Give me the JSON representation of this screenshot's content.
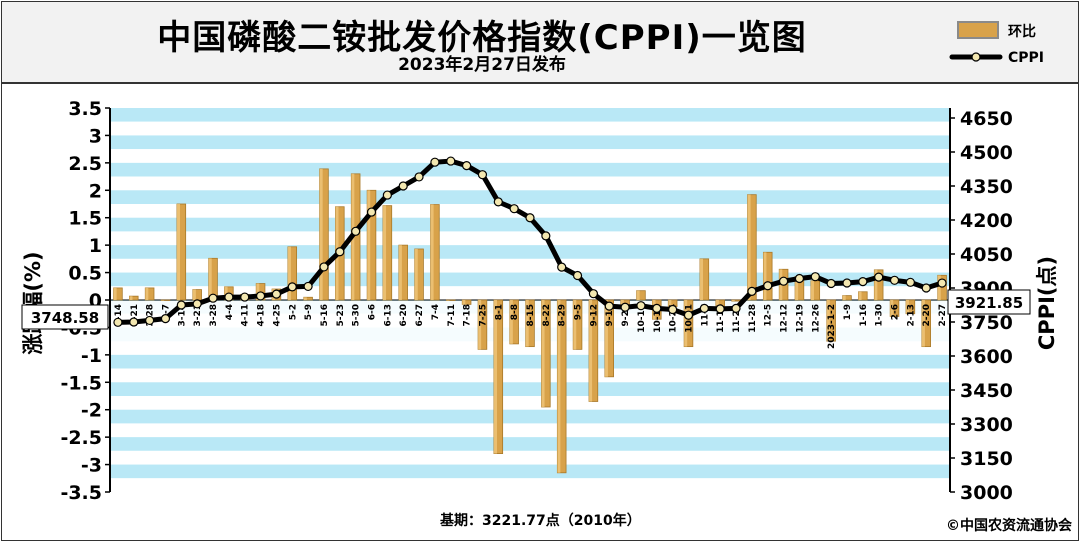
{
  "header": {
    "title": "中国磷酸二铵批发价格指数(CPPI)一览图",
    "subtitle": "2023年2月27日发布"
  },
  "legend": {
    "bar_label": "环比",
    "line_label": "CPPI"
  },
  "footer": {
    "base_note": "基期：3221.77点（2010年）",
    "copyright": "©中国农资流通协会"
  },
  "callouts": {
    "start_value": "3748.58",
    "end_value": "3921.85"
  },
  "colors": {
    "bar_fill": "#d8a24a",
    "bar_edge": "#a87828",
    "band": "#b9e8f6",
    "line": "#000000",
    "marker": "#f3e7b0"
  },
  "chart_data": {
    "type": "bar",
    "title": "中国磷酸二铵批发价格指数(CPPI)一览图",
    "xlabel": "",
    "ylabel_left": "涨跌幅(%)",
    "ylabel_right": "CPPI(点)",
    "ylim_left": [
      -3.5,
      3.5
    ],
    "ylim_right": [
      3000,
      4650
    ],
    "yticks_left": [
      "3.5",
      "3",
      "2.5",
      "2",
      "1.5",
      "1",
      "0.5",
      "0",
      "-0.5",
      "-1",
      "-1.5",
      "-2",
      "-2.5",
      "-3",
      "-3.5"
    ],
    "yticks_right": [
      "4650",
      "4500",
      "4350",
      "4200",
      "4050",
      "3900",
      "3750",
      "3600",
      "3450",
      "3300",
      "3150",
      "3000"
    ],
    "categories": [
      "2-14",
      "2-21",
      "2-28",
      "3-7",
      "3-14",
      "3-21",
      "3-28",
      "4-4",
      "4-11",
      "4-18",
      "4-25",
      "5-2",
      "5-9",
      "5-16",
      "5-23",
      "5-30",
      "6-6",
      "6-13",
      "6-20",
      "6-27",
      "7-4",
      "7-11",
      "7-18",
      "7-25",
      "8-1",
      "8-8",
      "8-15",
      "8-22",
      "8-29",
      "9-5",
      "9-12",
      "9-19",
      "9-26",
      "10-10",
      "10-17",
      "10-24",
      "10-31",
      "11-7",
      "11-14",
      "11-21",
      "11-28",
      "12-5",
      "12-12",
      "12-19",
      "12-26",
      "2023-1-2",
      "1-9",
      "1-16",
      "1-30",
      "2-6",
      "2-13",
      "2-20",
      "2-27"
    ],
    "series": [
      {
        "name": "环比",
        "type": "bar",
        "axis": "left",
        "values": [
          0.22,
          0.07,
          0.22,
          0.0,
          1.75,
          0.19,
          0.76,
          0.24,
          0.1,
          0.3,
          0.2,
          0.97,
          0.05,
          2.39,
          1.7,
          2.3,
          2.0,
          1.72,
          1.0,
          0.93,
          1.74,
          0.0,
          -0.08,
          -0.9,
          -2.8,
          -0.8,
          -0.85,
          -1.95,
          -3.15,
          -0.9,
          -1.85,
          -1.4,
          -0.15,
          0.17,
          -0.35,
          -0.12,
          -0.85,
          0.75,
          -0.12,
          -0.02,
          1.92,
          0.87,
          0.56,
          0.43,
          0.35,
          -0.75,
          0.08,
          0.15,
          0.55,
          -0.3,
          -0.25,
          -0.85,
          0.45
        ]
      },
      {
        "name": "CPPI",
        "type": "line",
        "axis": "right",
        "values": [
          3748.58,
          3750,
          3757,
          3765,
          3825,
          3830,
          3855,
          3860,
          3860,
          3865,
          3873,
          3905,
          3907,
          3993,
          4060,
          4150,
          4235,
          4310,
          4350,
          4390,
          4455,
          4460,
          4440,
          4400,
          4280,
          4250,
          4210,
          4130,
          3992,
          3955,
          3875,
          3820,
          3815,
          3822,
          3810,
          3805,
          3780,
          3810,
          3808,
          3810,
          3885,
          3910,
          3930,
          3942,
          3950,
          3920,
          3922,
          3928,
          3948,
          3934,
          3925,
          3900,
          3921.85
        ]
      }
    ],
    "legend_position": "top-right",
    "grid": true
  }
}
